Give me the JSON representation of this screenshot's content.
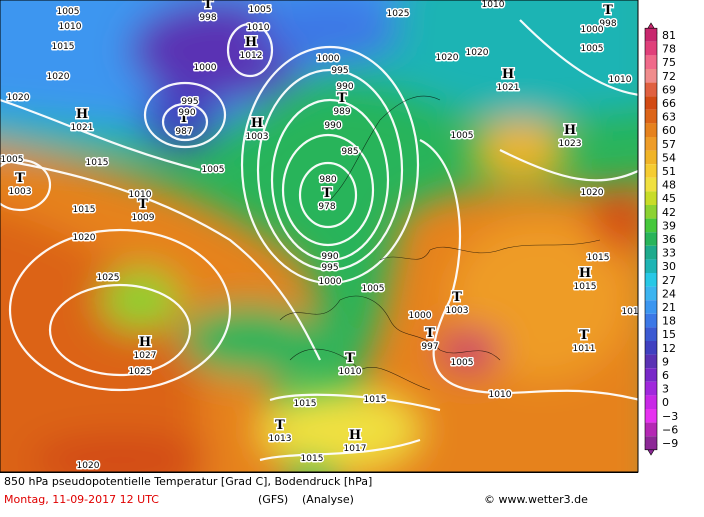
{
  "caption": {
    "title": "850 hPa pseudopotentielle Temperatur [Grad C], Bodendruck [hPa]",
    "date": "Montag, 11-09-2017  12 UTC",
    "model": "(GFS)",
    "run": "(Analyse)",
    "source": "© www.wetter3.de"
  },
  "scale": {
    "labels": [
      "81",
      "78",
      "75",
      "72",
      "69",
      "66",
      "63",
      "60",
      "57",
      "54",
      "51",
      "48",
      "45",
      "42",
      "39",
      "36",
      "33",
      "30",
      "27",
      "24",
      "21",
      "18",
      "15",
      "12",
      "9",
      "6",
      "3",
      "0",
      "−3",
      "−6",
      "−9"
    ],
    "colors": [
      "#c8286e",
      "#e0407a",
      "#f06a8a",
      "#f08c8c",
      "#e06040",
      "#d24a14",
      "#dc6418",
      "#e6821e",
      "#ee9c28",
      "#f0b428",
      "#f5cc32",
      "#f0e040",
      "#c8dc28",
      "#8cd232",
      "#46c83c",
      "#28b45a",
      "#1eaa8c",
      "#1eb4b4",
      "#28c8e6",
      "#3cb4f0",
      "#3c96f0",
      "#3c78e6",
      "#3c5ad2",
      "#4040c0",
      "#5a32b4",
      "#7828c8",
      "#a028dc",
      "#c828e6",
      "#e632f0",
      "#b428b4",
      "#8c2896"
    ]
  },
  "centers": [
    {
      "symbol": "T",
      "value": "998"
    },
    {
      "symbol": "H",
      "value": "1012"
    },
    {
      "symbol": "T",
      "value": "987"
    },
    {
      "symbol": "H",
      "value": "1003"
    },
    {
      "symbol": "T",
      "value": "989"
    },
    {
      "symbol": "T",
      "value": "978"
    },
    {
      "symbol": "H",
      "value": "1021"
    },
    {
      "symbol": "T",
      "value": "1003"
    },
    {
      "symbol": "T",
      "value": "1009"
    },
    {
      "symbol": "H",
      "value": "1021"
    },
    {
      "symbol": "T",
      "value": "998"
    },
    {
      "symbol": "H",
      "value": "1023"
    },
    {
      "symbol": "H",
      "value": "1027"
    },
    {
      "symbol": "T",
      "value": "1010"
    },
    {
      "symbol": "T",
      "value": "1003"
    },
    {
      "symbol": "T",
      "value": "997"
    },
    {
      "symbol": "T",
      "value": "1013"
    },
    {
      "symbol": "H",
      "value": "1017"
    },
    {
      "symbol": "H",
      "value": "1015"
    },
    {
      "symbol": "T",
      "value": "1011"
    }
  ],
  "isobars": [
    "1005",
    "1010",
    "1015",
    "1020",
    "1020",
    "1005",
    "1015",
    "1015",
    "1010",
    "1020",
    "1025",
    "1025",
    "1020",
    "1005",
    "1000",
    "995",
    "990",
    "1010",
    "1005",
    "1000",
    "995",
    "990",
    "990",
    "985",
    "980",
    "990",
    "995",
    "1000",
    "1005",
    "1005",
    "1025",
    "1010",
    "1020",
    "1020",
    "1000",
    "1005",
    "1010",
    "1020",
    "1015",
    "1000",
    "1005",
    "1010",
    "1015",
    "1015",
    "1015",
    "101"
  ]
}
